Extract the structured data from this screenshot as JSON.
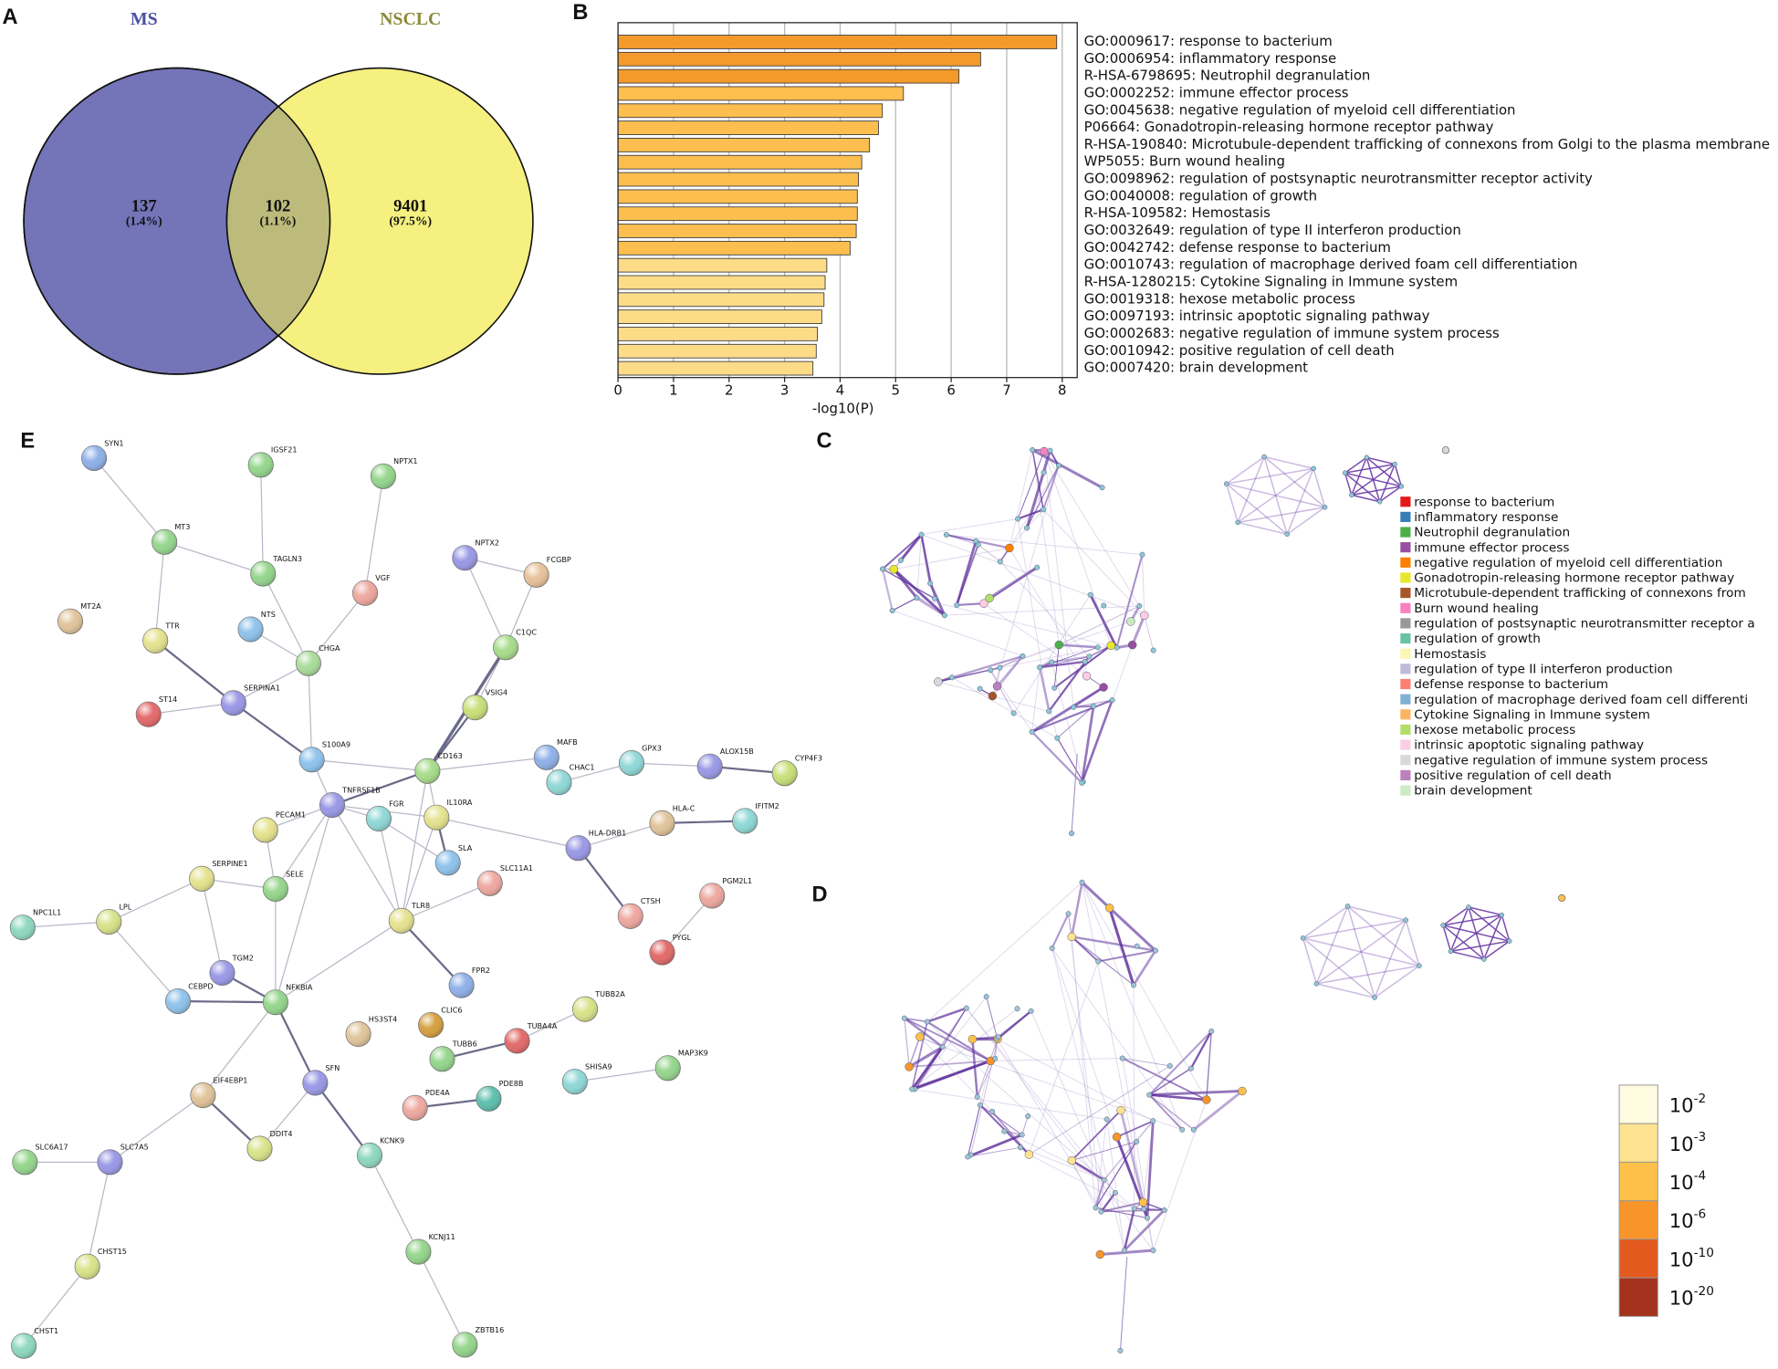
{
  "chart_data": [
    {
      "type": "venn",
      "panel": "A",
      "sets": [
        "MS",
        "NSCLC"
      ],
      "set_colors": [
        "#7474b9",
        "#f5f07f"
      ],
      "overlap_color": "#bcbb7b",
      "title_colors": [
        "#4b50a3",
        "#8c8a3a"
      ],
      "values": [
        137,
        102,
        9401
      ],
      "percent_labels": [
        "(1.4%)",
        "(1.1%)",
        "(97.5%)"
      ]
    },
    {
      "type": "bar",
      "orientation": "horizontal",
      "panel": "B",
      "categories": [
        "GO:0009617: response to bacterium",
        "GO:0006954: inflammatory response",
        "R-HSA-6798695: Neutrophil degranulation",
        "GO:0002252: immune effector process",
        "GO:0045638: negative regulation of myeloid cell differentiation",
        "P06664: Gonadotropin-releasing hormone receptor pathway",
        "R-HSA-190840: Microtubule-dependent trafficking of connexons from Golgi to the plasma membrane",
        "WP5055: Burn wound healing",
        "GO:0098962: regulation of postsynaptic neurotransmitter receptor activity",
        "GO:0040008: regulation of growth",
        "R-HSA-109582: Hemostasis",
        "GO:0032649: regulation of type II interferon production",
        "GO:0042742: defense response to bacterium",
        "GO:0010743: regulation of macrophage derived foam cell differentiation",
        "R-HSA-1280215: Cytokine Signaling in Immune system",
        "GO:0019318: hexose metabolic process",
        "GO:0097193: intrinsic apoptotic signaling pathway",
        "GO:0002683: negative regulation of immune system process",
        "GO:0010942: positive regulation of cell death",
        "GO:0007420: brain development"
      ],
      "values": [
        7.9,
        6.53,
        6.14,
        5.14,
        4.76,
        4.69,
        4.53,
        4.39,
        4.33,
        4.31,
        4.31,
        4.29,
        4.18,
        3.76,
        3.73,
        3.71,
        3.67,
        3.59,
        3.57,
        3.51
      ],
      "colors": [
        "#f39a2b",
        "#f39a2b",
        "#f39a2b",
        "#fbbe4f",
        "#fbbe4f",
        "#fbbe4f",
        "#fbbe4f",
        "#fbbe4f",
        "#fbbe4f",
        "#fbbe4f",
        "#fbbe4f",
        "#fbbe4f",
        "#fbbe4f",
        "#fddc88",
        "#fddc88",
        "#fddc88",
        "#fddc88",
        "#fddc88",
        "#fddc88",
        "#fddc88"
      ],
      "xlabel": "-log10(P)",
      "xlim": [
        0,
        8.27
      ],
      "xticks": [
        0,
        1,
        2,
        3,
        4,
        5,
        6,
        7,
        8
      ],
      "grid": true
    },
    {
      "type": "network",
      "panel": "C",
      "legend": {
        "labels": [
          "response to bacterium",
          "inflammatory response",
          "Neutrophil degranulation",
          "immune effector process",
          "negative regulation of myeloid cell differentiation",
          "Gonadotropin-releasing hormone receptor pathway",
          "Microtubule-dependent trafficking of connexons from",
          "Burn wound healing",
          "regulation of postsynaptic neurotransmitter receptor a",
          "regulation of growth",
          "Hemostasis",
          "regulation of type II interferon production",
          "defense response to bacterium",
          "regulation of macrophage derived foam cell differenti",
          "Cytokine Signaling in Immune system",
          "hexose metabolic process",
          "intrinsic apoptotic signaling pathway",
          "negative regulation of immune system process",
          "positive regulation of cell death",
          "brain development"
        ],
        "colors": [
          "#e41a1c",
          "#377eb8",
          "#4daf4a",
          "#984ea3",
          "#ff7f00",
          "#e8e82a",
          "#a65628",
          "#f781bf",
          "#999999",
          "#66c2a5",
          "#fbf6b3",
          "#bebada",
          "#fb8072",
          "#80b1d3",
          "#fdb462",
          "#b3de69",
          "#fccde5",
          "#d9d9d9",
          "#bc80bd",
          "#ccebc5"
        ]
      }
    },
    {
      "type": "network",
      "panel": "D",
      "color_scale": {
        "colors": [
          "#fefbe0",
          "#fde38f",
          "#fdc149",
          "#f7952a",
          "#e35a1e",
          "#a3311b"
        ],
        "labels": [
          {
            "base": "10",
            "exponent": "-2"
          },
          {
            "base": "10",
            "exponent": "-3"
          },
          {
            "base": "10",
            "exponent": "-4"
          },
          {
            "base": "10",
            "exponent": "-6"
          },
          {
            "base": "10",
            "exponent": "-10"
          },
          {
            "base": "10",
            "exponent": "-20"
          }
        ]
      }
    },
    {
      "type": "network",
      "panel": "E",
      "nodes": [
        "SYN1",
        "IGSF21",
        "NPTX1",
        "MT3",
        "TAGLN3",
        "NPTX2",
        "FCGBP",
        "VGF",
        "MT2A",
        "TTR",
        "NTS",
        "CHGA",
        "C1QC",
        "ST14",
        "SERPINA1",
        "VSIG4",
        "S100A9",
        "CD163",
        "MAFB",
        "CHAC1",
        "GPX3",
        "ALOX15B",
        "CYP4F3",
        "TNFRSF1B",
        "PECAM1",
        "FGR",
        "IL10RA",
        "HLA-C",
        "IFITM2",
        "SLA",
        "HLA-DRB1",
        "SERPINE1",
        "SELE",
        "SLC11A1",
        "PGM2L1",
        "TLR8",
        "CTSH",
        "NPC1L1",
        "LPL",
        "PYGL",
        "TGM2",
        "CEBPD",
        "NFKBIA",
        "FPR2",
        "TUBB2A",
        "HS3ST4",
        "CLIC6",
        "TUBA4A",
        "TUBB6",
        "SHISA9",
        "MAP3K9",
        "EIF4EBP1",
        "SFN",
        "PDE4A",
        "PDE8B",
        "DDIT4",
        "KCNK9",
        "SLC6A17",
        "SLC7A5",
        "KCNJ11",
        "CHST15",
        "ZBTB16",
        "CHST1"
      ]
    }
  ]
}
